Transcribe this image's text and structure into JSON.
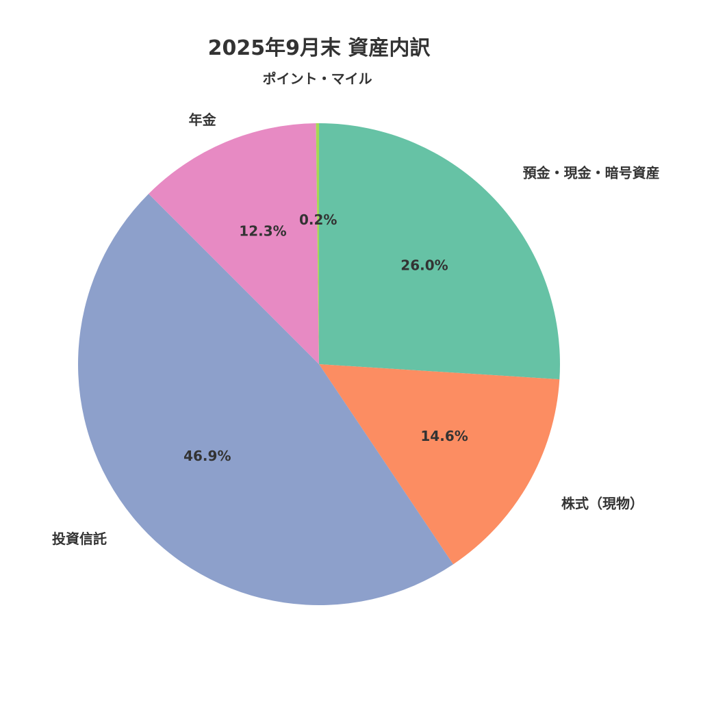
{
  "chart_data": {
    "type": "pie",
    "title": "2025年9月末 資産内訳",
    "start_angle_deg": 90,
    "direction": "clockwise",
    "slices": [
      {
        "label": "預金・現金・暗号資産",
        "value": 26.0,
        "pct_label": "26.0%",
        "color": "#66c2a5"
      },
      {
        "label": "株式（現物）",
        "value": 14.6,
        "pct_label": "14.6%",
        "color": "#fc8d62"
      },
      {
        "label": "投資信託",
        "value": 46.9,
        "pct_label": "46.9%",
        "color": "#8da0cb"
      },
      {
        "label": "年金",
        "value": 12.3,
        "pct_label": "12.3%",
        "color": "#e78ac3"
      },
      {
        "label": "ポイント・マイル",
        "value": 0.2,
        "pct_label": "0.2%",
        "color": "#a6d854"
      }
    ]
  }
}
